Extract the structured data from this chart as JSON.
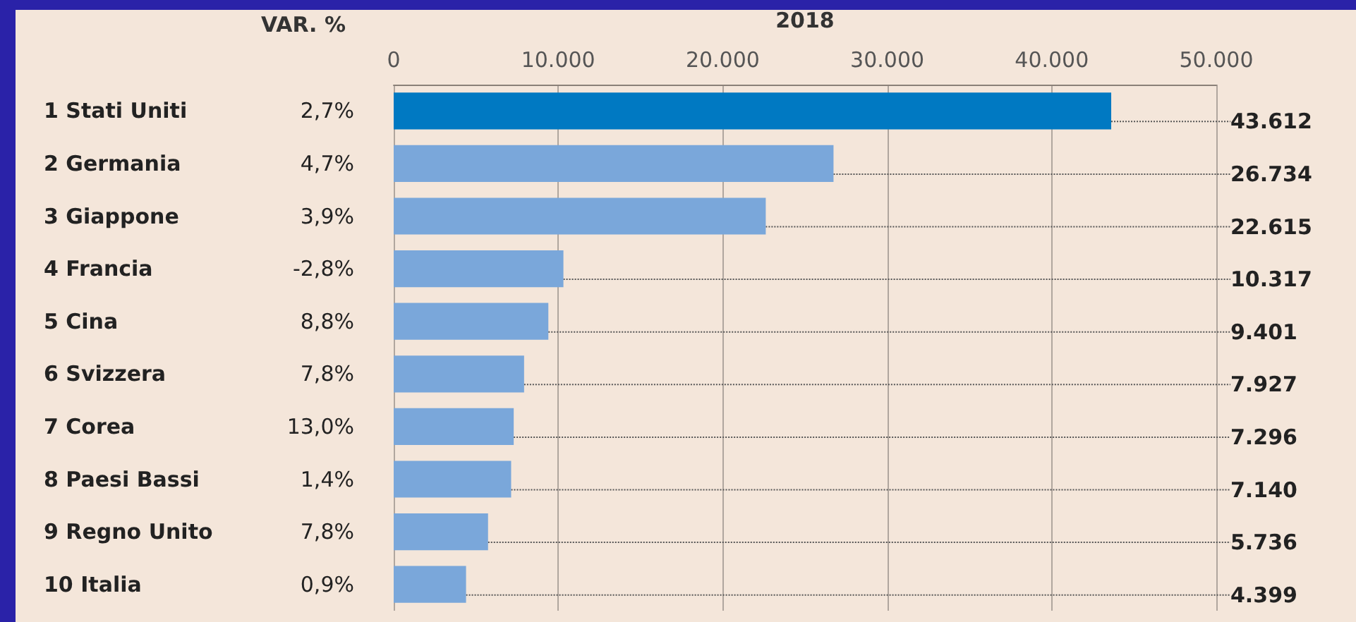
{
  "chart_data": {
    "type": "bar",
    "orientation": "horizontal",
    "xlabel": "2018",
    "categories": [
      "1 Stati Uniti",
      "2 Germania",
      "3 Giappone",
      "4 Francia",
      "5 Cina",
      "6 Svizzera",
      "7 Corea",
      "8 Paesi Bassi",
      "9 Regno Unito",
      "10 Italia"
    ],
    "values": [
      43612,
      26734,
      22615,
      10317,
      9401,
      7927,
      7296,
      7140,
      5736,
      4399
    ],
    "value_labels": [
      "43.612",
      "26.734",
      "22.615",
      "10.317",
      "9.401",
      "7.927",
      "7.296",
      "7.140",
      "5.736",
      "4.399"
    ],
    "colors": [
      "#0079c2",
      "#7aa7da",
      "#7aa7da",
      "#7aa7da",
      "#7aa7da",
      "#7aa7da",
      "#7aa7da",
      "#7aa7da",
      "#7aa7da",
      "#7aa7da"
    ],
    "xlim": [
      0,
      50000
    ],
    "xticks": [
      0,
      {
        "value": 10000,
        "label": "10.000"
      },
      {
        "value": 20000,
        "label": "20.000"
      },
      {
        "value": 30000,
        "label": "30.000"
      },
      {
        "value": 40000,
        "label": "40.000"
      },
      {
        "value": 50000,
        "label": "50.000"
      }
    ],
    "grid": "x",
    "annotations": [
      "VAR. %",
      "2,7%",
      "4,7%",
      "3,9%",
      "-2,8%",
      "8,8%",
      "7,8%",
      "13,0%",
      "1,4%",
      "7,8%",
      "0,9%"
    ]
  }
}
